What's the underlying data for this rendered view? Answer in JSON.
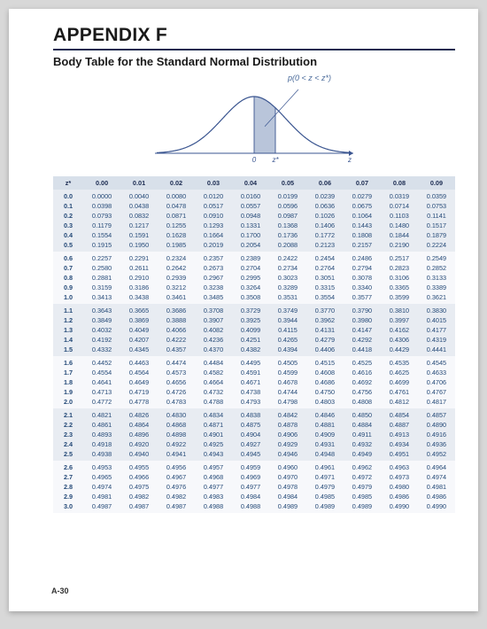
{
  "header": {
    "appendix": "APPENDIX F",
    "subtitle": "Body Table for the Standard Normal Distribution"
  },
  "curve": {
    "prob_label": "p(0 < z < z*)",
    "axis_zero": "0",
    "axis_z": "z*",
    "axis_right": "z",
    "fill_color": "#b9c5da",
    "line_color": "#3a5590",
    "stroke_width": 1.2
  },
  "table": {
    "header_bg": "#d8e0ea",
    "text_color": "#254a78",
    "zstar_label": "z*",
    "col_labels": [
      "0.00",
      "0.01",
      "0.02",
      "0.03",
      "0.04",
      "0.05",
      "0.06",
      "0.07",
      "0.08",
      "0.09"
    ],
    "groups": [
      [
        {
          "z": "0.0",
          "v": [
            "0.0000",
            "0.0040",
            "0.0080",
            "0.0120",
            "0.0160",
            "0.0199",
            "0.0239",
            "0.0279",
            "0.0319",
            "0.0359"
          ]
        },
        {
          "z": "0.1",
          "v": [
            "0.0398",
            "0.0438",
            "0.0478",
            "0.0517",
            "0.0557",
            "0.0596",
            "0.0636",
            "0.0675",
            "0.0714",
            "0.0753"
          ]
        },
        {
          "z": "0.2",
          "v": [
            "0.0793",
            "0.0832",
            "0.0871",
            "0.0910",
            "0.0948",
            "0.0987",
            "0.1026",
            "0.1064",
            "0.1103",
            "0.1141"
          ]
        },
        {
          "z": "0.3",
          "v": [
            "0.1179",
            "0.1217",
            "0.1255",
            "0.1293",
            "0.1331",
            "0.1368",
            "0.1406",
            "0.1443",
            "0.1480",
            "0.1517"
          ]
        },
        {
          "z": "0.4",
          "v": [
            "0.1554",
            "0.1591",
            "0.1628",
            "0.1664",
            "0.1700",
            "0.1736",
            "0.1772",
            "0.1808",
            "0.1844",
            "0.1879"
          ]
        },
        {
          "z": "0.5",
          "v": [
            "0.1915",
            "0.1950",
            "0.1985",
            "0.2019",
            "0.2054",
            "0.2088",
            "0.2123",
            "0.2157",
            "0.2190",
            "0.2224"
          ]
        }
      ],
      [
        {
          "z": "0.6",
          "v": [
            "0.2257",
            "0.2291",
            "0.2324",
            "0.2357",
            "0.2389",
            "0.2422",
            "0.2454",
            "0.2486",
            "0.2517",
            "0.2549"
          ]
        },
        {
          "z": "0.7",
          "v": [
            "0.2580",
            "0.2611",
            "0.2642",
            "0.2673",
            "0.2704",
            "0.2734",
            "0.2764",
            "0.2794",
            "0.2823",
            "0.2852"
          ]
        },
        {
          "z": "0.8",
          "v": [
            "0.2881",
            "0.2910",
            "0.2939",
            "0.2967",
            "0.2995",
            "0.3023",
            "0.3051",
            "0.3078",
            "0.3106",
            "0.3133"
          ]
        },
        {
          "z": "0.9",
          "v": [
            "0.3159",
            "0.3186",
            "0.3212",
            "0.3238",
            "0.3264",
            "0.3289",
            "0.3315",
            "0.3340",
            "0.3365",
            "0.3389"
          ]
        },
        {
          "z": "1.0",
          "v": [
            "0.3413",
            "0.3438",
            "0.3461",
            "0.3485",
            "0.3508",
            "0.3531",
            "0.3554",
            "0.3577",
            "0.3599",
            "0.3621"
          ]
        }
      ],
      [
        {
          "z": "1.1",
          "v": [
            "0.3643",
            "0.3665",
            "0.3686",
            "0.3708",
            "0.3729",
            "0.3749",
            "0.3770",
            "0.3790",
            "0.3810",
            "0.3830"
          ]
        },
        {
          "z": "1.2",
          "v": [
            "0.3849",
            "0.3869",
            "0.3888",
            "0.3907",
            "0.3925",
            "0.3944",
            "0.3962",
            "0.3980",
            "0.3997",
            "0.4015"
          ]
        },
        {
          "z": "1.3",
          "v": [
            "0.4032",
            "0.4049",
            "0.4066",
            "0.4082",
            "0.4099",
            "0.4115",
            "0.4131",
            "0.4147",
            "0.4162",
            "0.4177"
          ]
        },
        {
          "z": "1.4",
          "v": [
            "0.4192",
            "0.4207",
            "0.4222",
            "0.4236",
            "0.4251",
            "0.4265",
            "0.4279",
            "0.4292",
            "0.4306",
            "0.4319"
          ]
        },
        {
          "z": "1.5",
          "v": [
            "0.4332",
            "0.4345",
            "0.4357",
            "0.4370",
            "0.4382",
            "0.4394",
            "0.4406",
            "0.4418",
            "0.4429",
            "0.4441"
          ]
        }
      ],
      [
        {
          "z": "1.6",
          "v": [
            "0.4452",
            "0.4463",
            "0.4474",
            "0.4484",
            "0.4495",
            "0.4505",
            "0.4515",
            "0.4525",
            "0.4535",
            "0.4545"
          ]
        },
        {
          "z": "1.7",
          "v": [
            "0.4554",
            "0.4564",
            "0.4573",
            "0.4582",
            "0.4591",
            "0.4599",
            "0.4608",
            "0.4616",
            "0.4625",
            "0.4633"
          ]
        },
        {
          "z": "1.8",
          "v": [
            "0.4641",
            "0.4649",
            "0.4656",
            "0.4664",
            "0.4671",
            "0.4678",
            "0.4686",
            "0.4692",
            "0.4699",
            "0.4706"
          ]
        },
        {
          "z": "1.9",
          "v": [
            "0.4713",
            "0.4719",
            "0.4726",
            "0.4732",
            "0.4738",
            "0.4744",
            "0.4750",
            "0.4756",
            "0.4761",
            "0.4767"
          ]
        },
        {
          "z": "2.0",
          "v": [
            "0.4772",
            "0.4778",
            "0.4783",
            "0.4788",
            "0.4793",
            "0.4798",
            "0.4803",
            "0.4808",
            "0.4812",
            "0.4817"
          ]
        }
      ],
      [
        {
          "z": "2.1",
          "v": [
            "0.4821",
            "0.4826",
            "0.4830",
            "0.4834",
            "0.4838",
            "0.4842",
            "0.4846",
            "0.4850",
            "0.4854",
            "0.4857"
          ]
        },
        {
          "z": "2.2",
          "v": [
            "0.4861",
            "0.4864",
            "0.4868",
            "0.4871",
            "0.4875",
            "0.4878",
            "0.4881",
            "0.4884",
            "0.4887",
            "0.4890"
          ]
        },
        {
          "z": "2.3",
          "v": [
            "0.4893",
            "0.4896",
            "0.4898",
            "0.4901",
            "0.4904",
            "0.4906",
            "0.4909",
            "0.4911",
            "0.4913",
            "0.4916"
          ]
        },
        {
          "z": "2.4",
          "v": [
            "0.4918",
            "0.4920",
            "0.4922",
            "0.4925",
            "0.4927",
            "0.4929",
            "0.4931",
            "0.4932",
            "0.4934",
            "0.4936"
          ]
        },
        {
          "z": "2.5",
          "v": [
            "0.4938",
            "0.4940",
            "0.4941",
            "0.4943",
            "0.4945",
            "0.4946",
            "0.4948",
            "0.4949",
            "0.4951",
            "0.4952"
          ]
        }
      ],
      [
        {
          "z": "2.6",
          "v": [
            "0.4953",
            "0.4955",
            "0.4956",
            "0.4957",
            "0.4959",
            "0.4960",
            "0.4961",
            "0.4962",
            "0.4963",
            "0.4964"
          ]
        },
        {
          "z": "2.7",
          "v": [
            "0.4965",
            "0.4966",
            "0.4967",
            "0.4968",
            "0.4969",
            "0.4970",
            "0.4971",
            "0.4972",
            "0.4973",
            "0.4974"
          ]
        },
        {
          "z": "2.8",
          "v": [
            "0.4974",
            "0.4975",
            "0.4976",
            "0.4977",
            "0.4977",
            "0.4978",
            "0.4979",
            "0.4979",
            "0.4980",
            "0.4981"
          ]
        },
        {
          "z": "2.9",
          "v": [
            "0.4981",
            "0.4982",
            "0.4982",
            "0.4983",
            "0.4984",
            "0.4984",
            "0.4985",
            "0.4985",
            "0.4986",
            "0.4986"
          ]
        },
        {
          "z": "3.0",
          "v": [
            "0.4987",
            "0.4987",
            "0.4987",
            "0.4988",
            "0.4988",
            "0.4989",
            "0.4989",
            "0.4989",
            "0.4990",
            "0.4990"
          ]
        }
      ]
    ]
  },
  "page_number": "A-30"
}
